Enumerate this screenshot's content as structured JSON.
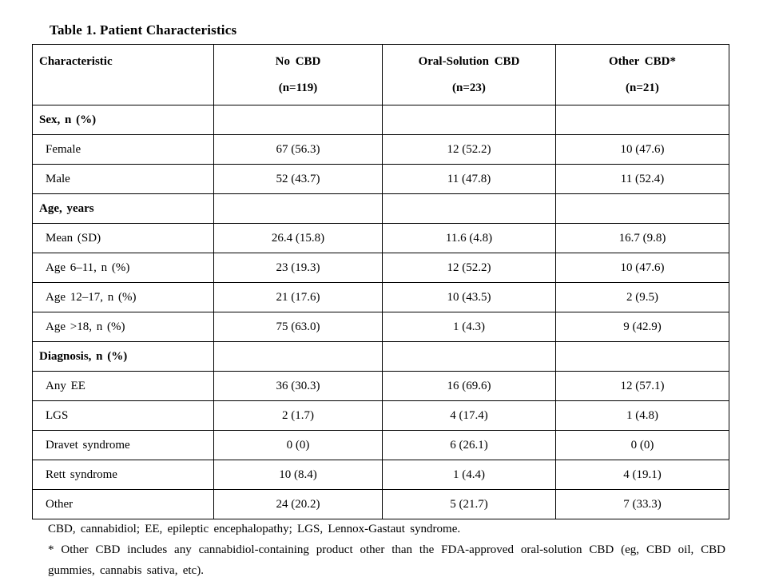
{
  "title": "Table 1. Patient Characteristics",
  "table": {
    "columns": [
      {
        "label": "Characteristic",
        "sub": ""
      },
      {
        "label": "No CBD",
        "sub": "(n=119)"
      },
      {
        "label": "Oral-Solution CBD",
        "sub": "(n=23)"
      },
      {
        "label": "Other CBD*",
        "sub": "(n=21)"
      }
    ],
    "rows": [
      {
        "type": "section",
        "label": "Sex, n (%)",
        "values": [
          "",
          "",
          ""
        ]
      },
      {
        "type": "data",
        "label": "Female",
        "values": [
          "67 (56.3)",
          "12 (52.2)",
          "10 (47.6)"
        ]
      },
      {
        "type": "data",
        "label": "Male",
        "values": [
          "52 (43.7)",
          "11 (47.8)",
          "11 (52.4)"
        ]
      },
      {
        "type": "section",
        "label": "Age, years",
        "values": [
          "",
          "",
          ""
        ]
      },
      {
        "type": "data",
        "label": "Mean (SD)",
        "values": [
          "26.4 (15.8)",
          "11.6 (4.8)",
          "16.7 (9.8)"
        ]
      },
      {
        "type": "data",
        "label": "Age 6–11, n (%)",
        "values": [
          "23 (19.3)",
          "12 (52.2)",
          "10 (47.6)"
        ]
      },
      {
        "type": "data",
        "label": "Age 12–17, n (%)",
        "values": [
          "21 (17.6)",
          "10 (43.5)",
          "2 (9.5)"
        ]
      },
      {
        "type": "data",
        "label": "Age >18, n (%)",
        "values": [
          "75 (63.0)",
          "1 (4.3)",
          "9 (42.9)"
        ]
      },
      {
        "type": "section",
        "label": "Diagnosis, n (%)",
        "values": [
          "",
          "",
          ""
        ]
      },
      {
        "type": "data",
        "label": "Any EE",
        "values": [
          "36 (30.3)",
          "16 (69.6)",
          "12 (57.1)"
        ]
      },
      {
        "type": "data",
        "label": "LGS",
        "values": [
          "2 (1.7)",
          "4 (17.4)",
          "1 (4.8)"
        ]
      },
      {
        "type": "data",
        "label": "Dravet syndrome",
        "values": [
          "0 (0)",
          "6 (26.1)",
          "0 (0)"
        ]
      },
      {
        "type": "data",
        "label": "Rett syndrome",
        "values": [
          "10 (8.4)",
          "1 (4.4)",
          "4 (19.1)"
        ]
      },
      {
        "type": "data",
        "label": "Other",
        "values": [
          "24 (20.2)",
          "5 (21.7)",
          "7 (33.3)"
        ]
      }
    ]
  },
  "footnotes": [
    "CBD, cannabidiol; EE, epileptic encephalopathy; LGS, Lennox-Gastaut syndrome.",
    "* Other CBD includes any cannabidiol-containing product other than the FDA-approved oral-solution CBD (eg, CBD oil, CBD gummies, cannabis sativa, etc)."
  ]
}
